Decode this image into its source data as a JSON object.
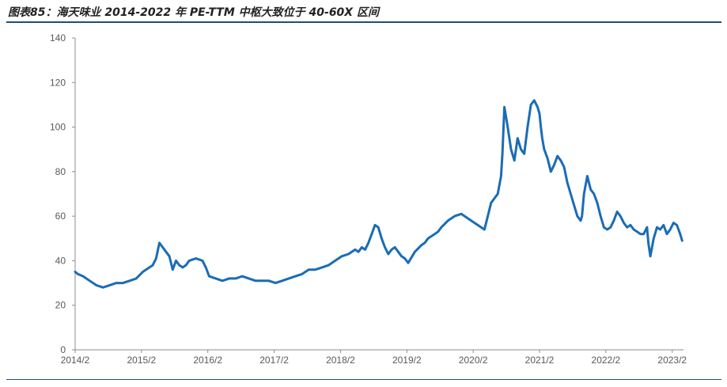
{
  "header": {
    "title": "图表85：海天味业 2014-2022 年 PE-TTM 中枢大致位于 40-60X 区间"
  },
  "colors": {
    "line": "#1b6cb5",
    "rule": "#1f4e79",
    "axis": "#8c8c8c"
  },
  "chart_data": {
    "type": "line",
    "title": "图表85：海天味业 2014-2022 年 PE-TTM 中枢大致位于 40-60X 区间",
    "xlabel": "",
    "ylabel": "",
    "xlim": [
      2014.08,
      2023.25
    ],
    "ylim": [
      0,
      140
    ],
    "yticks": [
      0,
      20,
      40,
      60,
      80,
      100,
      120,
      140
    ],
    "xticks": [
      {
        "x": 2014.08,
        "label": "2014/2"
      },
      {
        "x": 2015.08,
        "label": "2015/2"
      },
      {
        "x": 2016.08,
        "label": "2016/2"
      },
      {
        "x": 2017.08,
        "label": "2017/2"
      },
      {
        "x": 2018.08,
        "label": "2018/2"
      },
      {
        "x": 2019.08,
        "label": "2019/2"
      },
      {
        "x": 2020.08,
        "label": "2020/2"
      },
      {
        "x": 2021.08,
        "label": "2021/2"
      },
      {
        "x": 2022.08,
        "label": "2022/2"
      },
      {
        "x": 2023.08,
        "label": "2023/2"
      }
    ],
    "grid": false,
    "legend": "none",
    "series": [
      {
        "x": [
          2014.08,
          2014.12,
          2014.2,
          2014.3,
          2014.4,
          2014.5,
          2014.6,
          2014.7,
          2014.8,
          2014.9,
          2015.0,
          2015.1,
          2015.2,
          2015.25,
          2015.3,
          2015.35,
          2015.4,
          2015.45,
          2015.5,
          2015.55,
          2015.6,
          2015.65,
          2015.7,
          2015.75,
          2015.8,
          2015.9,
          2016.0,
          2016.05,
          2016.1,
          2016.2,
          2016.3,
          2016.4,
          2016.5,
          2016.6,
          2016.7,
          2016.8,
          2016.9,
          2017.0,
          2017.1,
          2017.2,
          2017.3,
          2017.4,
          2017.5,
          2017.6,
          2017.7,
          2017.8,
          2017.9,
          2018.0,
          2018.1,
          2018.2,
          2018.25,
          2018.3,
          2018.35,
          2018.4,
          2018.45,
          2018.5,
          2018.55,
          2018.6,
          2018.65,
          2018.7,
          2018.75,
          2018.8,
          2018.85,
          2018.9,
          2018.95,
          2019.0,
          2019.05,
          2019.1,
          2019.2,
          2019.3,
          2019.35,
          2019.4,
          2019.45,
          2019.5,
          2019.55,
          2019.6,
          2019.7,
          2019.8,
          2019.9,
          2019.95,
          2020.0,
          2020.05,
          2020.1,
          2020.15,
          2020.2,
          2020.25,
          2020.3,
          2020.35,
          2020.4,
          2020.45,
          2020.5,
          2020.52,
          2020.55,
          2020.6,
          2020.65,
          2020.7,
          2020.75,
          2020.8,
          2020.85,
          2020.9,
          2020.95,
          2021.0,
          2021.05,
          2021.08,
          2021.1,
          2021.12,
          2021.15,
          2021.2,
          2021.25,
          2021.3,
          2021.35,
          2021.4,
          2021.45,
          2021.5,
          2021.55,
          2021.6,
          2021.65,
          2021.7,
          2021.72,
          2021.75,
          2021.8,
          2021.85,
          2021.9,
          2021.95,
          2022.0,
          2022.05,
          2022.1,
          2022.15,
          2022.2,
          2022.25,
          2022.3,
          2022.35,
          2022.4,
          2022.45,
          2022.5,
          2022.55,
          2022.6,
          2022.65,
          2022.7,
          2022.72,
          2022.75,
          2022.8,
          2022.85,
          2022.9,
          2022.95,
          2023.0,
          2023.05,
          2023.1,
          2023.15,
          2023.2,
          2023.23
        ],
        "values": [
          35,
          34,
          33,
          31,
          29,
          28,
          29,
          30,
          30,
          31,
          32,
          35,
          37,
          38,
          41,
          48,
          46,
          44,
          42,
          36,
          40,
          38,
          37,
          38,
          40,
          41,
          40,
          37,
          33,
          32,
          31,
          32,
          32,
          33,
          32,
          31,
          31,
          31,
          30,
          31,
          32,
          33,
          34,
          36,
          36,
          37,
          38,
          40,
          42,
          43,
          44,
          45,
          44,
          46,
          45,
          48,
          52,
          56,
          55,
          50,
          46,
          43,
          45,
          46,
          44,
          42,
          41,
          39,
          44,
          47,
          48,
          50,
          51,
          52,
          53,
          55,
          58,
          60,
          61,
          60,
          59,
          58,
          57,
          56,
          55,
          54,
          60,
          66,
          68,
          70,
          78,
          88,
          109,
          100,
          90,
          85,
          95,
          90,
          88,
          100,
          110,
          112,
          109,
          106,
          100,
          95,
          90,
          86,
          80,
          83,
          87,
          85,
          82,
          75,
          70,
          65,
          60,
          58,
          60,
          70,
          78,
          72,
          70,
          66,
          60,
          55,
          54,
          55,
          58,
          62,
          60,
          57,
          55,
          56,
          54,
          53,
          52,
          52,
          55,
          48,
          42,
          50,
          55,
          54,
          56,
          52,
          54,
          57,
          56,
          52,
          49
        ]
      }
    ]
  }
}
